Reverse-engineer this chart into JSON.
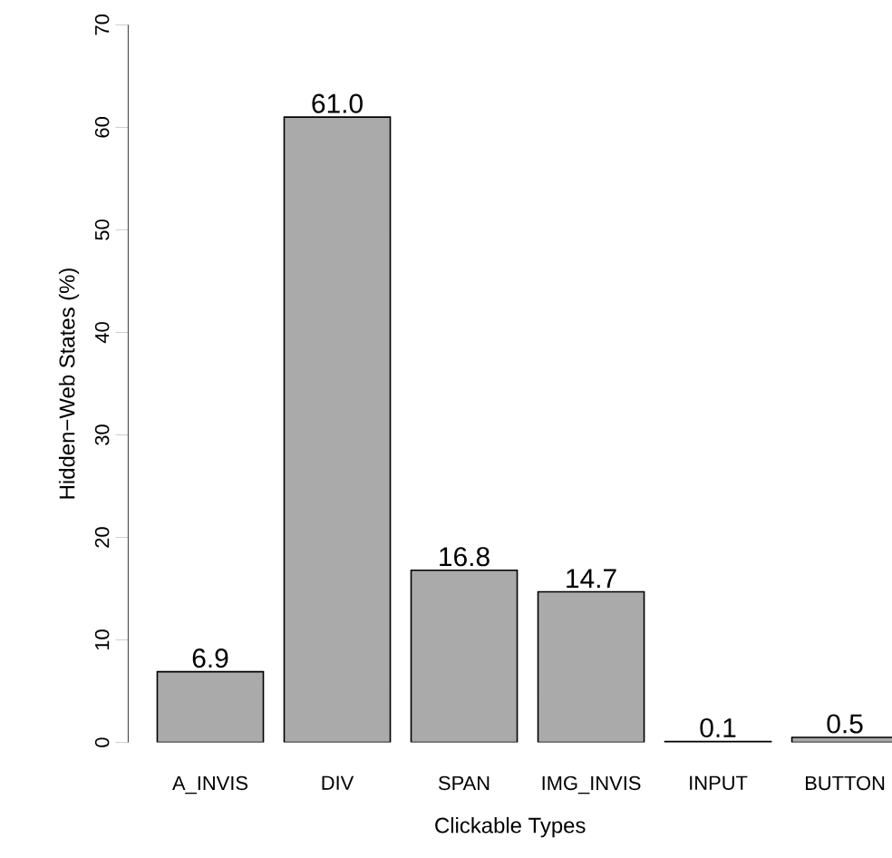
{
  "chart_data": {
    "type": "bar",
    "xlabel": "Clickable Types",
    "ylabel": "Hidden−Web States (%)",
    "categories": [
      "A_INVIS",
      "DIV",
      "SPAN",
      "IMG_INVIS",
      "INPUT",
      "BUTTON"
    ],
    "values": [
      6.9,
      61.0,
      16.8,
      14.7,
      0.1,
      0.5
    ],
    "value_labels": [
      "6.9",
      "61.0",
      "16.8",
      "14.7",
      "0.1",
      "0.5"
    ],
    "color": "#aaaaaa",
    "ylim": [
      0,
      70
    ],
    "yticks": [
      0,
      10,
      20,
      30,
      40,
      50,
      60,
      70
    ],
    "grid": false
  }
}
